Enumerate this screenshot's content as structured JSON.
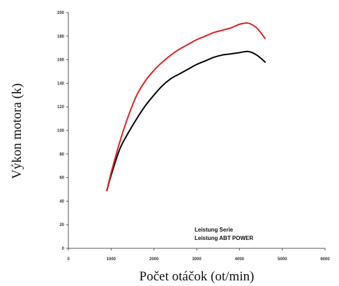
{
  "chart_data": {
    "type": "line",
    "xlabel": "Počet otáčok  (ot/min)",
    "ylabel": "Výkon motora  (k)",
    "xlim": [
      0,
      6000
    ],
    "ylim": [
      0,
      200
    ],
    "x_ticks": [
      "0",
      "1000",
      "2000",
      "3000",
      "4000",
      "5000",
      "6000"
    ],
    "y_ticks": [
      "0",
      "20",
      "40",
      "60",
      "80",
      "100",
      "120",
      "140",
      "160",
      "180",
      "200"
    ],
    "grid": false,
    "legend": {
      "position": "bottom-right",
      "entries": [
        "Leistung Serie",
        "Leistung ABT POWER"
      ]
    },
    "series": [
      {
        "name": "Leistung Serie",
        "color": "#000000",
        "x": [
          900,
          1000,
          1200,
          1400,
          1600,
          1800,
          2000,
          2200,
          2400,
          2600,
          2800,
          3000,
          3200,
          3400,
          3600,
          3800,
          4000,
          4200,
          4400,
          4600
        ],
        "y": [
          49,
          62,
          84,
          98,
          110,
          121,
          130,
          138,
          144,
          148,
          152,
          156,
          159,
          162,
          164,
          165,
          166,
          167,
          164,
          158
        ]
      },
      {
        "name": "Leistung ABT POWER",
        "color": "#e02020",
        "x": [
          900,
          1000,
          1200,
          1400,
          1600,
          1800,
          2000,
          2200,
          2400,
          2600,
          2800,
          3000,
          3200,
          3400,
          3600,
          3800,
          4000,
          4200,
          4400,
          4600
        ],
        "y": [
          49,
          64,
          90,
          112,
          130,
          142,
          151,
          158,
          164,
          169,
          173,
          177,
          180,
          183,
          185,
          187,
          190,
          191,
          187,
          178
        ]
      }
    ]
  }
}
